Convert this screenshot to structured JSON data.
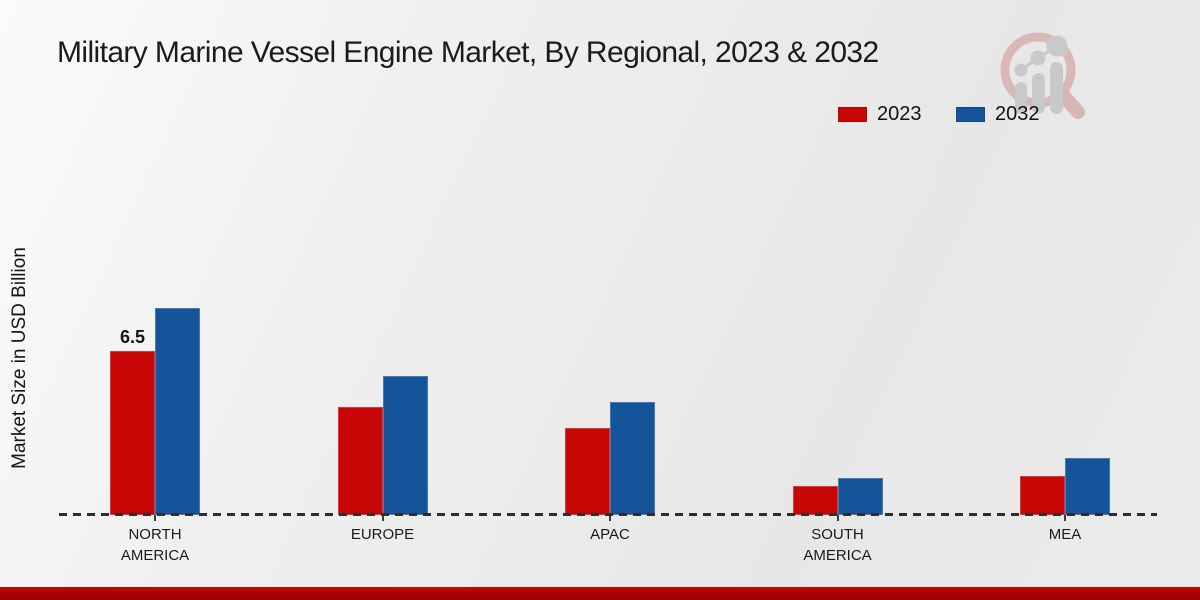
{
  "title": "Military Marine Vessel Engine Market, By Regional, 2023 & 2032",
  "watermark": "market-research-growth-magnifier-logo",
  "chart_data": {
    "type": "bar",
    "title": "Military Marine Vessel Engine Market, By Regional, 2023 & 2032",
    "xlabel": "",
    "ylabel": "Market Size in USD Billion",
    "categories": [
      "NORTH AMERICA",
      "EUROPE",
      "APAC",
      "SOUTH AMERICA",
      "MEA"
    ],
    "tick_labels": [
      "NORTH\nAMERICA",
      "EUROPE",
      "APAC",
      "SOUTH\nAMERICA",
      "MEA"
    ],
    "series": [
      {
        "name": "2023",
        "color": "#c90606",
        "values": [
          6.5,
          4.3,
          3.45,
          1.15,
          1.55
        ]
      },
      {
        "name": "2032",
        "color": "#15549a",
        "values": [
          8.2,
          5.5,
          4.5,
          1.45,
          2.25
        ]
      }
    ],
    "data_labels": [
      {
        "series_index": 0,
        "category_index": 0,
        "text": "6.5"
      }
    ],
    "ylim": [
      0,
      8.5
    ],
    "grid": false,
    "legend_position": "top-right",
    "baseline_style": "dashed",
    "accent_colors": {
      "footer_bar": "#a80303"
    }
  }
}
